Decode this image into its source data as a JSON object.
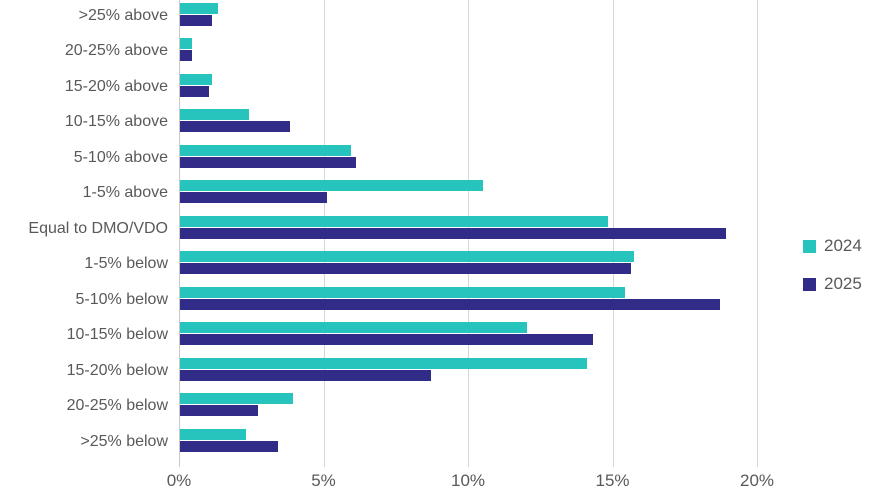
{
  "chart_data": {
    "type": "bar",
    "orientation": "horizontal",
    "title": "",
    "xlabel": "",
    "ylabel": "",
    "categories": [
      ">25% above",
      "20-25% above",
      "15-20% above",
      "10-15% above",
      "5-10% above",
      "1-5% above",
      "Equal to DMO/VDO",
      "1-5% below",
      "5-10% below",
      "10-15% below",
      "15-20% below",
      "20-25% below",
      ">25% below"
    ],
    "series": [
      {
        "name": "2024",
        "color": "#26c4bd",
        "values": [
          1.3,
          0.4,
          1.1,
          2.4,
          5.9,
          10.5,
          14.8,
          15.7,
          15.4,
          12.0,
          14.1,
          3.9,
          2.3
        ]
      },
      {
        "name": "2025",
        "color": "#312c87",
        "values": [
          1.1,
          0.4,
          1.0,
          3.8,
          6.1,
          5.1,
          18.9,
          15.6,
          18.7,
          14.3,
          8.7,
          2.7,
          3.4
        ]
      }
    ],
    "x_ticks": [
      {
        "label": "0%",
        "value": 0
      },
      {
        "label": "5%",
        "value": 5
      },
      {
        "label": "10%",
        "value": 10
      },
      {
        "label": "15%",
        "value": 15
      },
      {
        "label": "20%",
        "value": 20
      }
    ],
    "xlim": [
      0,
      21
    ],
    "grid": true,
    "legend_position": "right"
  },
  "legend": {
    "items": [
      {
        "label": "2024",
        "color": "#26c4bd"
      },
      {
        "label": "2025",
        "color": "#312c87"
      }
    ]
  },
  "colors": {
    "series_2024": "#26c4bd",
    "series_2025": "#312c87",
    "gridline": "#d6d6d6",
    "axis_text": "#595959",
    "background": "#ffffff"
  }
}
